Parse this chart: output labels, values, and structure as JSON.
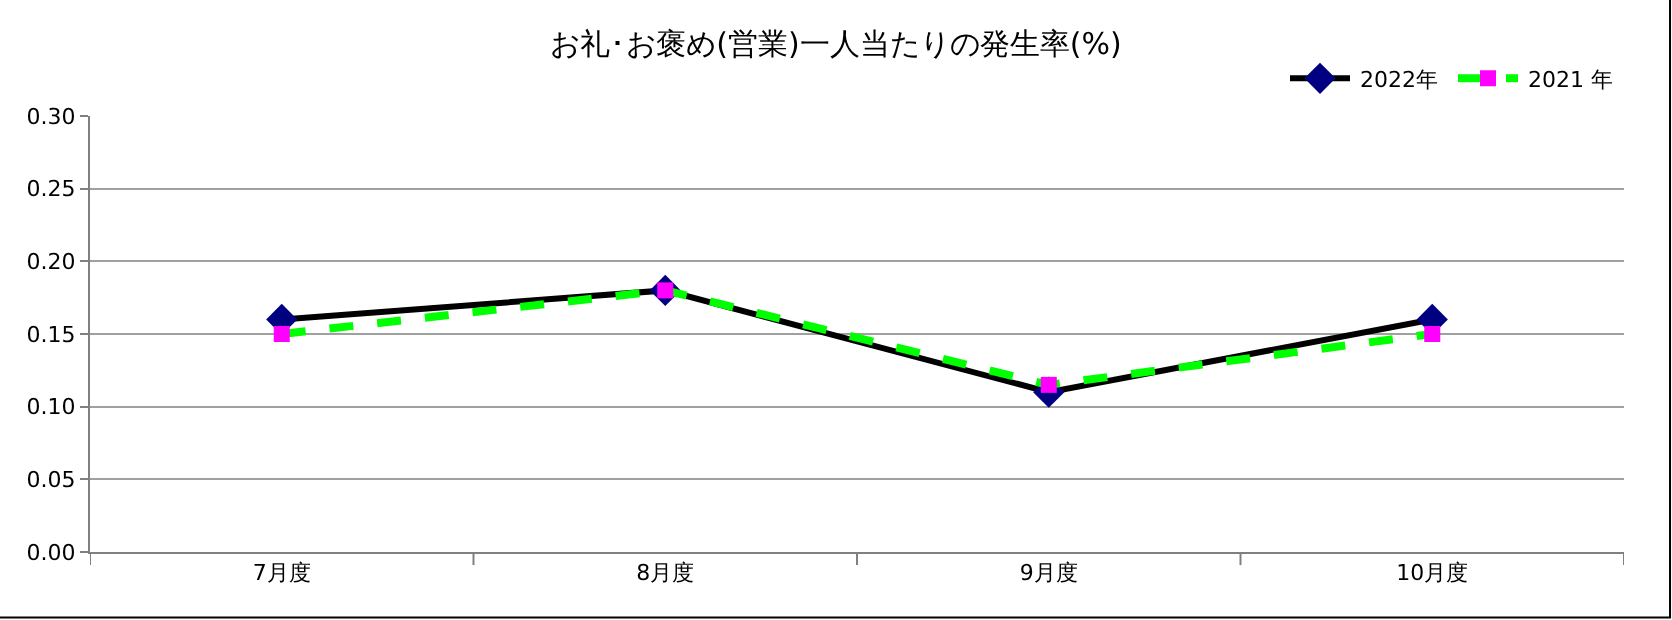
{
  "chart_data": {
    "type": "line",
    "title": "お礼･お褒め(営業)一人当たりの発生率(%)",
    "categories": [
      "7月度",
      "8月度",
      "9月度",
      "10月度"
    ],
    "series": [
      {
        "name": "2022年",
        "color": "#000000",
        "colors": [
          "#000080",
          "#000080",
          "#000080",
          "#000080"
        ],
        "marker": "diamond",
        "line_style": "solid",
        "values": [
          0.16,
          0.18,
          0.11,
          0.16
        ]
      },
      {
        "name": "2021 年",
        "color": "#00ff00",
        "colors": [
          "#ff00ff",
          "#ff00ff",
          "#ff00ff",
          "#ff00ff"
        ],
        "marker": "square",
        "line_style": "dashed",
        "values": [
          0.15,
          0.18,
          0.115,
          0.15
        ]
      }
    ],
    "ylim": [
      0,
      0.3
    ],
    "yticks": [
      {
        "value": 0,
        "label": "0.00"
      },
      {
        "value": 0.05,
        "label": "0.05"
      },
      {
        "value": 0.1,
        "label": "0.10"
      },
      {
        "value": 0.15,
        "label": "0.15"
      },
      {
        "value": 0.2,
        "label": "0.20"
      },
      {
        "value": 0.25,
        "label": "0.25"
      },
      {
        "value": 0.3,
        "label": "0.30"
      }
    ],
    "grid": "y",
    "legend": "top right"
  }
}
